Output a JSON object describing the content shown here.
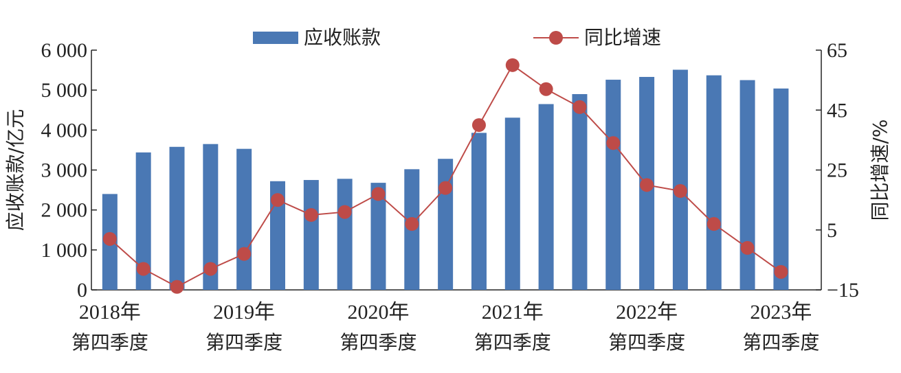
{
  "chart_data": {
    "type": "bar",
    "legend_position": "top",
    "grid": false,
    "x_tick_labels": [
      {
        "year": "2018年",
        "quarter": "第四季度"
      },
      {
        "year": "2019年",
        "quarter": "第四季度"
      },
      {
        "year": "2020年",
        "quarter": "第四季度"
      },
      {
        "year": "2021年",
        "quarter": "第四季度"
      },
      {
        "year": "2022年",
        "quarter": "第四季度"
      },
      {
        "year": "2023年",
        "quarter": "第四季度"
      }
    ],
    "x_tick_indices": [
      0,
      4,
      8,
      12,
      16,
      20
    ],
    "series": [
      {
        "name": "应收账款",
        "kind": "bar",
        "axis": "left",
        "color": "#4a78b4",
        "values": [
          2400,
          3440,
          3580,
          3650,
          3530,
          2720,
          2750,
          2780,
          2680,
          3020,
          3280,
          3930,
          4310,
          4650,
          4900,
          5260,
          5330,
          5510,
          5370,
          5250,
          5040
        ]
      },
      {
        "name": "同比增速",
        "kind": "line",
        "axis": "right",
        "color": "#be4b48",
        "values": [
          2,
          -8,
          -14,
          -8,
          -3,
          15,
          10,
          11,
          17,
          7,
          19,
          40,
          60,
          52,
          46,
          34,
          20,
          18,
          7,
          -1,
          -9
        ]
      }
    ],
    "yleft": {
      "label": "应收账款/亿元",
      "ticks": [
        "0",
        "1 000",
        "2 000",
        "3 000",
        "4 000",
        "5 000",
        "6 000"
      ],
      "lim": [
        0,
        6000
      ]
    },
    "yright": {
      "label": "同比增速/%",
      "ticks": [
        "−15",
        "5",
        "25",
        "45",
        "65"
      ],
      "lim": [
        -15,
        65
      ]
    }
  }
}
